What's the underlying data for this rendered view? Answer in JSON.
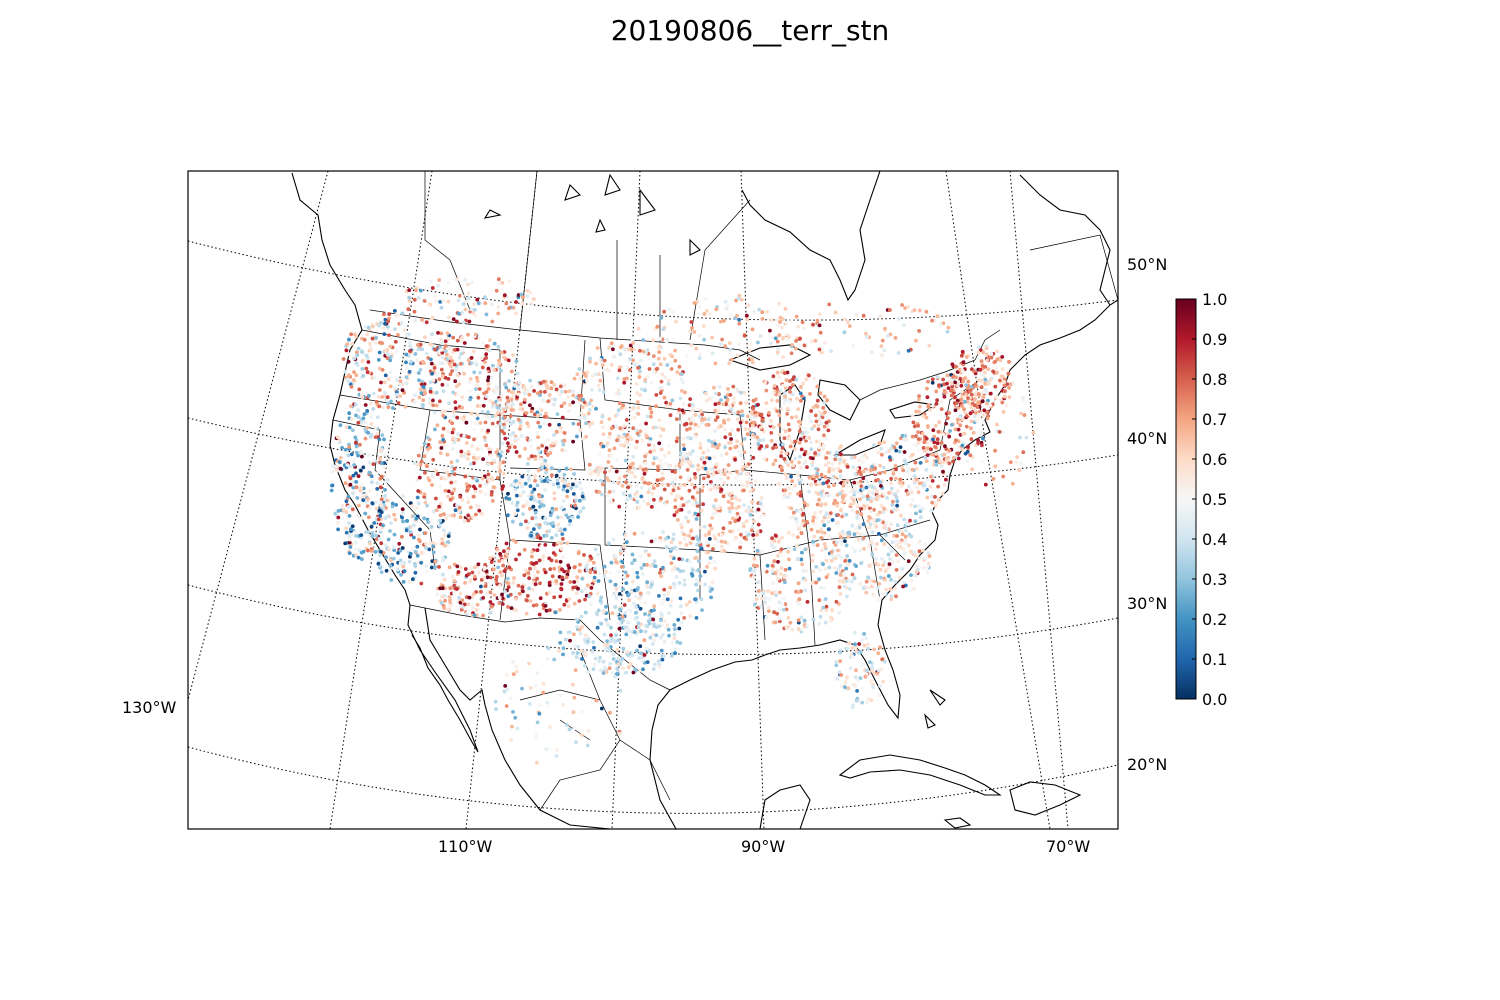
{
  "title": "20190806__terr_stn",
  "map": {
    "projection": "Lambert conformal conic",
    "region": "Contiguous United States and surroundings",
    "lat_labels": [
      {
        "lat": 50,
        "text": "50°N"
      },
      {
        "lat": 40,
        "text": "40°N"
      },
      {
        "lat": 30,
        "text": "30°N"
      },
      {
        "lat": 20,
        "text": "20°N"
      }
    ],
    "lon_labels": [
      {
        "lon": -130,
        "text": "130°W"
      },
      {
        "lon": -110,
        "text": "110°W"
      },
      {
        "lon": -90,
        "text": "90°W"
      },
      {
        "lon": -70,
        "text": "70°W"
      }
    ],
    "graticule_style": "dotted",
    "marker": "small filled circles (stations)"
  },
  "colorbar": {
    "colormap": "RdBu_r (blue low, white mid, red high)",
    "min": 0.0,
    "max": 1.0,
    "ticks": [
      "0.0",
      "0.1",
      "0.2",
      "0.3",
      "0.4",
      "0.5",
      "0.6",
      "0.7",
      "0.8",
      "0.9",
      "1.0"
    ],
    "colors": {
      "low": "#053061",
      "mid": "#f7f7f7",
      "high": "#67001f"
    }
  },
  "chart_data": {
    "type": "scatter",
    "title": "20190806__terr_stn",
    "xlabel": "",
    "ylabel": "",
    "value_range": [
      0.0,
      1.0
    ],
    "series": [
      {
        "values_by_region": [
          {
            "region": "Pacific Northwest",
            "dominant": "mixed red/blue",
            "approx_mean": 0.55
          },
          {
            "region": "California coast",
            "dominant": "blue and red mix",
            "approx_mean": 0.45
          },
          {
            "region": "Intermountain West",
            "dominant": "red",
            "approx_mean": 0.7
          },
          {
            "region": "Colorado Rockies",
            "dominant": "dark blue patches",
            "approx_mean": 0.3
          },
          {
            "region": "Southwest / New Mexico",
            "dominant": "red",
            "approx_mean": 0.75
          },
          {
            "region": "Great Plains",
            "dominant": "mixed light",
            "approx_mean": 0.55
          },
          {
            "region": "Texas",
            "dominant": "light blue",
            "approx_mean": 0.35
          },
          {
            "region": "Midwest",
            "dominant": "red",
            "approx_mean": 0.65
          },
          {
            "region": "Southeast",
            "dominant": "mixed light",
            "approx_mean": 0.55
          },
          {
            "region": "Northeast",
            "dominant": "red",
            "approx_mean": 0.7
          }
        ]
      }
    ]
  }
}
